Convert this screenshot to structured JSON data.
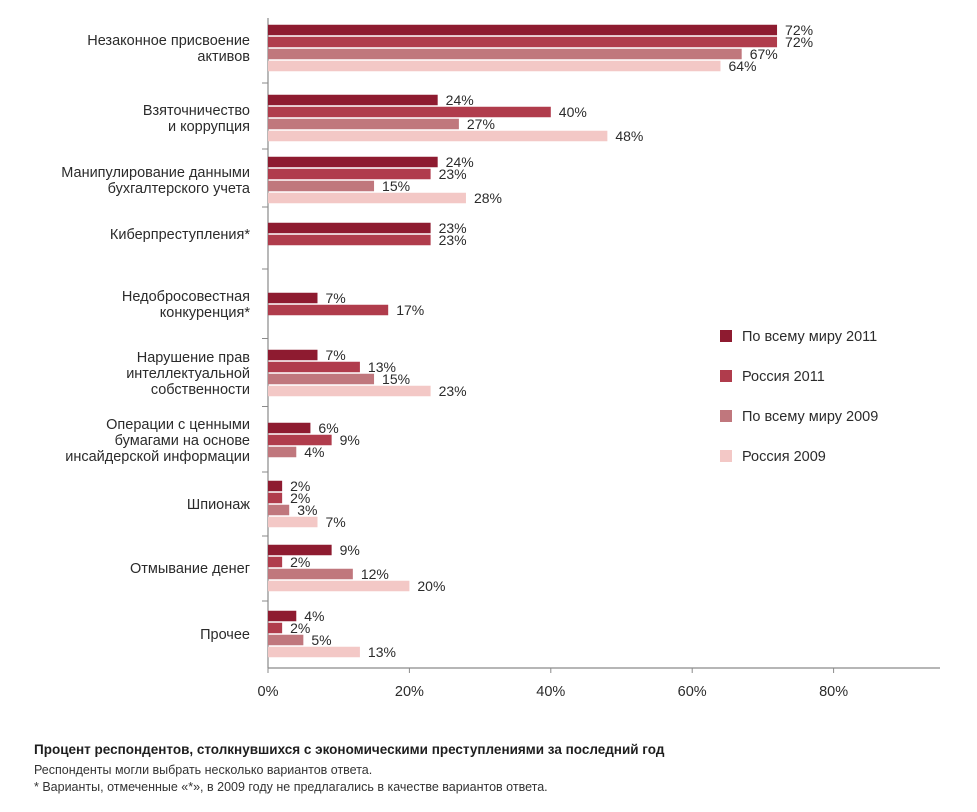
{
  "chart_data": {
    "type": "bar",
    "orientation": "horizontal",
    "categories": [
      [
        "Незаконное присвоение",
        "активов"
      ],
      [
        "Взяточничество",
        "и коррупция"
      ],
      [
        "Манипулирование данными",
        "бухгалтерского учета"
      ],
      [
        "Киберпреступления*"
      ],
      [
        "Недобросовестная",
        "конкуренция*"
      ],
      [
        "Нарушение прав",
        "интеллектуальной",
        "собственности"
      ],
      [
        "Операции с ценными",
        "бумагами на основе",
        "инсайдерской информации"
      ],
      [
        "Шпионаж"
      ],
      [
        "Отмывание денег"
      ],
      [
        "Прочее"
      ]
    ],
    "series": [
      {
        "name": "По всему миру 2011",
        "color": "#8e1b30",
        "values": [
          72,
          24,
          24,
          23,
          7,
          7,
          6,
          2,
          9,
          4
        ]
      },
      {
        "name": "Россия 2011",
        "color": "#b03c4c",
        "values": [
          72,
          40,
          23,
          23,
          17,
          13,
          9,
          2,
          2,
          2
        ]
      },
      {
        "name": "По всему миру 2009",
        "color": "#c0777d",
        "values": [
          67,
          27,
          15,
          null,
          null,
          15,
          4,
          3,
          12,
          5
        ]
      },
      {
        "name": "Россия 2009",
        "color": "#f3c8c6",
        "values": [
          64,
          48,
          28,
          null,
          null,
          23,
          null,
          7,
          20,
          13
        ]
      }
    ],
    "x_ticks": [
      "0%",
      "20%",
      "40%",
      "60%",
      "80%"
    ],
    "xlim": [
      0,
      94
    ],
    "value_suffix": "%",
    "legend_position": "right",
    "grid": false
  },
  "footer": {
    "title": "Процент респондентов, столкнувшихся с экономическими преступлениями за последний год",
    "note1": "Респонденты могли выбрать несколько вариантов ответа.",
    "note2": "* Варианты, отмеченные «*», в 2009 году не предлагались в качестве вариантов ответа."
  }
}
